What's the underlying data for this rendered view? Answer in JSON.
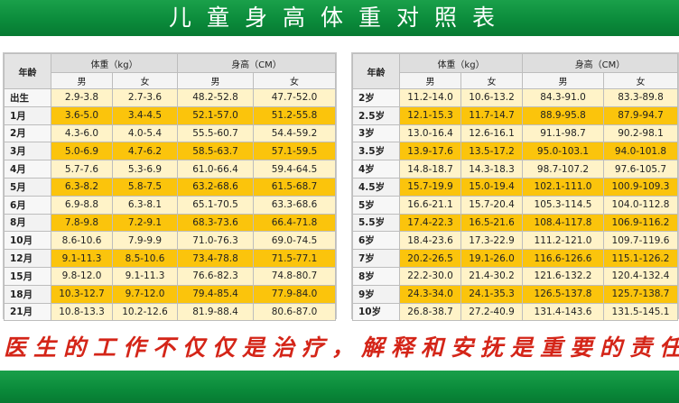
{
  "title": "儿童身高体重对照表",
  "headers": {
    "age": "年龄",
    "weight": "体重（kg）",
    "height": "身高（CM）",
    "male": "男",
    "female": "女"
  },
  "left_rows": [
    {
      "age": "出生",
      "wm": "2.9-3.8",
      "wf": "2.7-3.6",
      "hm": "48.2-52.8",
      "hf": "47.7-52.0"
    },
    {
      "age": "1月",
      "wm": "3.6-5.0",
      "wf": "3.4-4.5",
      "hm": "52.1-57.0",
      "hf": "51.2-55.8"
    },
    {
      "age": "2月",
      "wm": "4.3-6.0",
      "wf": "4.0-5.4",
      "hm": "55.5-60.7",
      "hf": "54.4-59.2"
    },
    {
      "age": "3月",
      "wm": "5.0-6.9",
      "wf": "4.7-6.2",
      "hm": "58.5-63.7",
      "hf": "57.1-59.5"
    },
    {
      "age": "4月",
      "wm": "5.7-7.6",
      "wf": "5.3-6.9",
      "hm": "61.0-66.4",
      "hf": "59.4-64.5"
    },
    {
      "age": "5月",
      "wm": "6.3-8.2",
      "wf": "5.8-7.5",
      "hm": "63.2-68.6",
      "hf": "61.5-68.7"
    },
    {
      "age": "6月",
      "wm": "6.9-8.8",
      "wf": "6.3-8.1",
      "hm": "65.1-70.5",
      "hf": "63.3-68.6"
    },
    {
      "age": "8月",
      "wm": "7.8-9.8",
      "wf": "7.2-9.1",
      "hm": "68.3-73.6",
      "hf": "66.4-71.8"
    },
    {
      "age": "10月",
      "wm": "8.6-10.6",
      "wf": "7.9-9.9",
      "hm": "71.0-76.3",
      "hf": "69.0-74.5"
    },
    {
      "age": "12月",
      "wm": "9.1-11.3",
      "wf": "8.5-10.6",
      "hm": "73.4-78.8",
      "hf": "71.5-77.1"
    },
    {
      "age": "15月",
      "wm": "9.8-12.0",
      "wf": "9.1-11.3",
      "hm": "76.6-82.3",
      "hf": "74.8-80.7"
    },
    {
      "age": "18月",
      "wm": "10.3-12.7",
      "wf": "9.7-12.0",
      "hm": "79.4-85.4",
      "hf": "77.9-84.0"
    },
    {
      "age": "21月",
      "wm": "10.8-13.3",
      "wf": "10.2-12.6",
      "hm": "81.9-88.4",
      "hf": "80.6-87.0"
    }
  ],
  "right_rows": [
    {
      "age": "2岁",
      "wm": "11.2-14.0",
      "wf": "10.6-13.2",
      "hm": "84.3-91.0",
      "hf": "83.3-89.8"
    },
    {
      "age": "2.5岁",
      "wm": "12.1-15.3",
      "wf": "11.7-14.7",
      "hm": "88.9-95.8",
      "hf": "87.9-94.7"
    },
    {
      "age": "3岁",
      "wm": "13.0-16.4",
      "wf": "12.6-16.1",
      "hm": "91.1-98.7",
      "hf": "90.2-98.1"
    },
    {
      "age": "3.5岁",
      "wm": "13.9-17.6",
      "wf": "13.5-17.2",
      "hm": "95.0-103.1",
      "hf": "94.0-101.8"
    },
    {
      "age": "4岁",
      "wm": "14.8-18.7",
      "wf": "14.3-18.3",
      "hm": "98.7-107.2",
      "hf": "97.6-105.7"
    },
    {
      "age": "4.5岁",
      "wm": "15.7-19.9",
      "wf": "15.0-19.4",
      "hm": "102.1-111.0",
      "hf": "100.9-109.3"
    },
    {
      "age": "5岁",
      "wm": "16.6-21.1",
      "wf": "15.7-20.4",
      "hm": "105.3-114.5",
      "hf": "104.0-112.8"
    },
    {
      "age": "5.5岁",
      "wm": "17.4-22.3",
      "wf": "16.5-21.6",
      "hm": "108.4-117.8",
      "hf": "106.9-116.2"
    },
    {
      "age": "6岁",
      "wm": "18.4-23.6",
      "wf": "17.3-22.9",
      "hm": "111.2-121.0",
      "hf": "109.7-119.6"
    },
    {
      "age": "7岁",
      "wm": "20.2-26.5",
      "wf": "19.1-26.0",
      "hm": "116.6-126.6",
      "hf": "115.1-126.2"
    },
    {
      "age": "8岁",
      "wm": "22.2-30.0",
      "wf": "21.4-30.2",
      "hm": "121.6-132.2",
      "hf": "120.4-132.4"
    },
    {
      "age": "9岁",
      "wm": "24.3-34.0",
      "wf": "24.1-35.3",
      "hm": "126.5-137.8",
      "hf": "125.7-138.7"
    },
    {
      "age": "10岁",
      "wm": "26.8-38.7",
      "wf": "27.2-40.9",
      "hm": "131.4-143.6",
      "hf": "131.5-145.1"
    }
  ],
  "slogan": "医生的工作不仅仅是治疗，解释和安抚是重要的责任",
  "colors": {
    "green": "#0a8a3a",
    "row_yellow": "#fbc40c",
    "row_pale": "#fff3c8",
    "slogan_red": "#d42518"
  }
}
